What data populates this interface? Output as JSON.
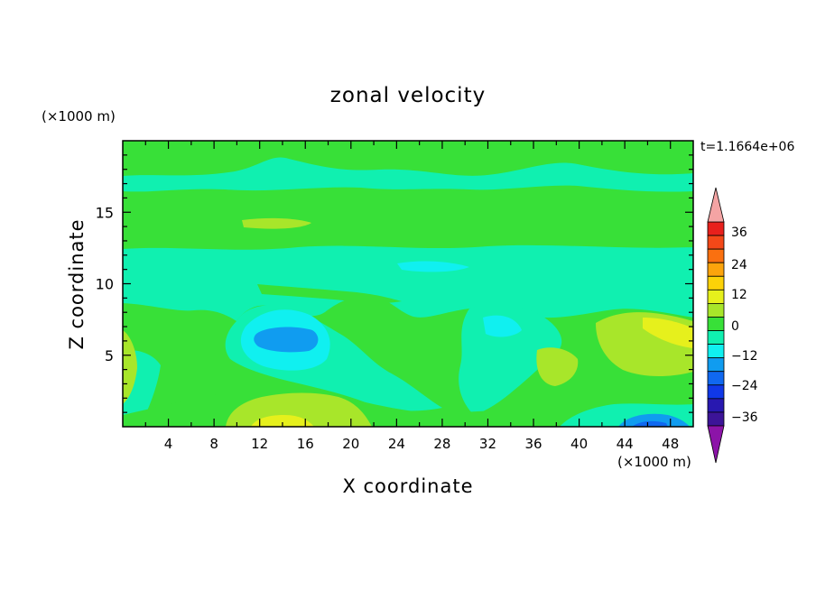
{
  "chart_data": {
    "type": "heatmap",
    "title": "zonal velocity",
    "xlabel": "X coordinate",
    "ylabel": "Z coordinate",
    "x_unit_label": "(×1000 m)",
    "y_unit_label": "(×1000 m)",
    "time_label": "t=1.1664e+06",
    "xlim": [
      0,
      50
    ],
    "ylim": [
      0,
      20
    ],
    "x_ticks": [
      "4",
      "8",
      "12",
      "16",
      "20",
      "24",
      "28",
      "32",
      "36",
      "40",
      "44",
      "48"
    ],
    "y_ticks": [
      "5",
      "10",
      "15"
    ],
    "colorbar": {
      "tick_labels": [
        "36",
        "24",
        "12",
        "0",
        "−12",
        "−24",
        "−36"
      ],
      "levels_high_to_low": [
        36,
        30,
        24,
        18,
        12,
        6,
        0,
        -6,
        -12,
        -18,
        -24,
        -30,
        -36,
        -42
      ],
      "colors_high_to_low": [
        "#e8201c",
        "#f44818",
        "#fa7010",
        "#fca40c",
        "#fcd208",
        "#e6f01c",
        "#a8e62a",
        "#38e038",
        "#10f0b0",
        "#10f0f0",
        "#109cf0",
        "#1068f0",
        "#1038e8",
        "#2818b0",
        "#3c1498"
      ],
      "over_color": "#f4a4a4",
      "under_color": "#8c14a8"
    },
    "regions": [
      {
        "name": "background",
        "value": 3
      },
      {
        "name": "upper band",
        "value": -3
      },
      {
        "name": "upper green stripe",
        "value": 3
      },
      {
        "name": "upper yellow streak",
        "value": 8
      },
      {
        "name": "mid cyan layer",
        "value": -6
      },
      {
        "name": "cyan patches",
        "value": -10
      },
      {
        "name": "blue core",
        "value": -15
      },
      {
        "name": "left yellow",
        "value": 8
      },
      {
        "name": "bottom yellow",
        "value": 9
      },
      {
        "name": "right yellow",
        "value": 9
      },
      {
        "name": "bottom blue",
        "value": -18
      }
    ]
  }
}
